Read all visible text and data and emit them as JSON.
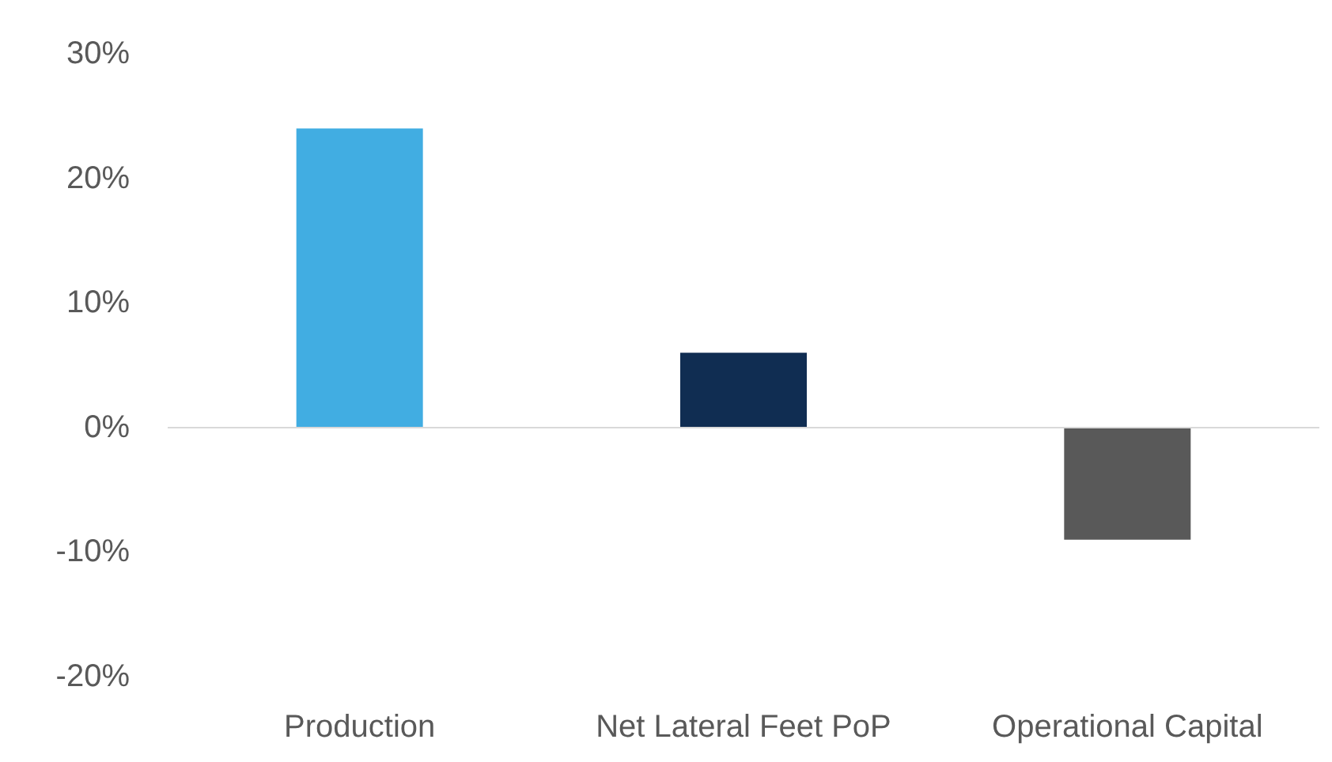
{
  "chart_data": {
    "type": "bar",
    "categories": [
      "Production",
      "Net Lateral Feet PoP",
      "Operational Capital"
    ],
    "values": [
      24,
      6,
      -9
    ],
    "colors": [
      "#41ade2",
      "#102d52",
      "#595959"
    ],
    "ylim": [
      -20,
      30
    ],
    "yticks": [
      {
        "value": -20,
        "label": "-20%"
      },
      {
        "value": -10,
        "label": "-10%"
      },
      {
        "value": 0,
        "label": "0%"
      },
      {
        "value": 10,
        "label": "10%"
      },
      {
        "value": 20,
        "label": "20%"
      },
      {
        "value": 30,
        "label": "30%"
      }
    ],
    "ref_lines": [
      {
        "axis": "y",
        "value": 0,
        "color": "#d9d9d9"
      }
    ],
    "grid": false
  }
}
